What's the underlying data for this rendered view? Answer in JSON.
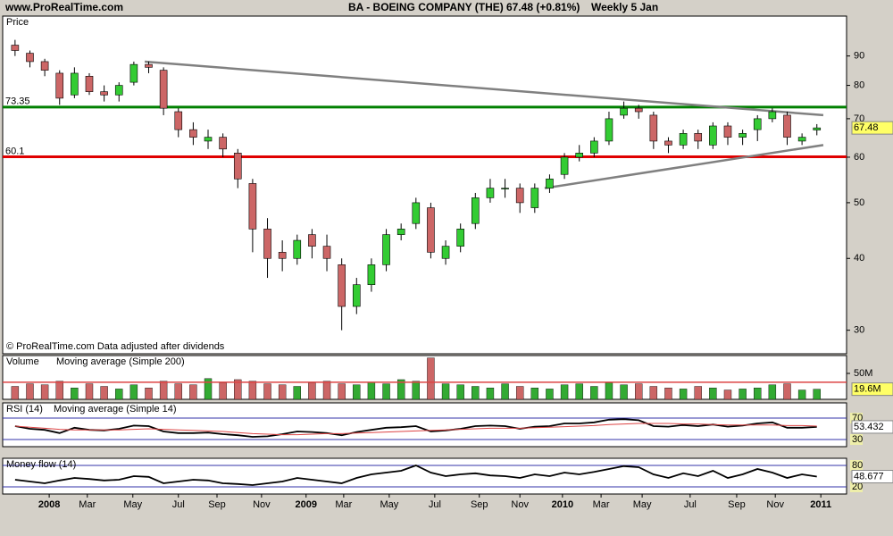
{
  "header": {
    "site": "www.ProRealTime.com"
  },
  "chart_data": [
    {
      "type": "candlestick",
      "title": "BA - BOEING COMPANY (THE)",
      "last_label": "67.48 (+0.81%)",
      "period": "Weekly  5 Jan",
      "ylabel": "Price",
      "note": "© ProRealTime.com  Data adjusted after dividends",
      "x": [
        2,
        5,
        8,
        11,
        14,
        17,
        20,
        23,
        26,
        29,
        32,
        35,
        38,
        41,
        44,
        47,
        50,
        53,
        56,
        59,
        62,
        65,
        68,
        71,
        74,
        77,
        80,
        83,
        86,
        89,
        92,
        95,
        98,
        101,
        104,
        107,
        110,
        113,
        116,
        119,
        122,
        125,
        128,
        131,
        134,
        137,
        140,
        143,
        146,
        149,
        152,
        155,
        158,
        161,
        164
      ],
      "open": [
        94,
        91,
        88,
        84,
        77,
        83,
        78,
        77,
        81,
        87,
        85,
        72,
        67,
        64,
        65,
        61,
        54,
        45,
        41,
        40,
        44,
        42,
        39,
        33,
        36,
        39,
        44,
        46,
        49,
        40,
        42,
        46,
        51,
        53,
        53,
        49,
        53,
        56,
        60,
        61,
        64,
        71,
        73,
        71,
        64,
        63,
        66,
        63,
        68,
        65,
        67,
        70,
        71,
        64,
        66.9
      ],
      "high": [
        96,
        92,
        89,
        85,
        86,
        84,
        80,
        81,
        88,
        88,
        86,
        73,
        69,
        67,
        66,
        62,
        55,
        47,
        43,
        44,
        45,
        44,
        40,
        37,
        40,
        45,
        46,
        51,
        50,
        43,
        46,
        52,
        55,
        55,
        54,
        54,
        56,
        61,
        63,
        65,
        72,
        75,
        74,
        72,
        65,
        67,
        67,
        69,
        69,
        67,
        71,
        73,
        72,
        66,
        68.5
      ],
      "low": [
        90,
        86,
        83,
        74,
        76,
        77,
        75,
        75,
        80,
        84,
        71,
        65,
        63,
        62,
        60,
        53,
        41,
        37,
        38,
        39,
        40,
        38,
        30,
        32,
        35,
        38,
        43,
        45,
        40,
        39,
        41,
        45,
        50,
        51,
        48,
        48,
        52,
        55,
        59,
        60,
        63,
        70,
        70,
        62,
        61,
        62,
        62,
        62,
        63,
        63,
        64,
        69,
        63,
        63,
        65.5
      ],
      "close": [
        92,
        88,
        85,
        76,
        84,
        78,
        77,
        80,
        87,
        86,
        73,
        67,
        65,
        65,
        62,
        55,
        45,
        40,
        40,
        43,
        42,
        40,
        33,
        36,
        39,
        44,
        45,
        50,
        41,
        42,
        45,
        51,
        53,
        53,
        50,
        53,
        55,
        60,
        61,
        64,
        70,
        73,
        72,
        64,
        63,
        66,
        64,
        68,
        65,
        66,
        70,
        72,
        65,
        65,
        67.48
      ],
      "up_color": "#33cc33",
      "down_color": "#cc6666",
      "last_price": 67.48,
      "xlim": [
        -0.5,
        170
      ],
      "ylim": [
        27.3,
        105.6
      ],
      "log": true,
      "yticks": [
        30,
        40,
        50,
        60,
        70,
        80,
        90
      ],
      "xticks": [
        {
          "value": 8.9,
          "label": "2008"
        },
        {
          "value": 16.6,
          "label": "Mar"
        },
        {
          "value": 25.8,
          "label": "May"
        },
        {
          "value": 35.0,
          "label": "Jul"
        },
        {
          "value": 42.8,
          "label": "Sep"
        },
        {
          "value": 51.8,
          "label": "Nov"
        },
        {
          "value": 60.8,
          "label": "2009"
        },
        {
          "value": 68.4,
          "label": "Mar"
        },
        {
          "value": 77.6,
          "label": "May"
        },
        {
          "value": 86.8,
          "label": "Jul"
        },
        {
          "value": 95.8,
          "label": "Sep"
        },
        {
          "value": 104.0,
          "label": "Nov"
        },
        {
          "value": 112.6,
          "label": "2010"
        },
        {
          "value": 120.4,
          "label": "Mar"
        },
        {
          "value": 128.7,
          "label": "May"
        },
        {
          "value": 138.4,
          "label": "Jul"
        },
        {
          "value": 147.8,
          "label": "Sep"
        },
        {
          "value": 155.6,
          "label": "Nov"
        },
        {
          "value": 164.8,
          "label": "2011"
        }
      ],
      "hlines": [
        {
          "value": 73.35,
          "label": "73.35",
          "color": "#008000"
        },
        {
          "value": 60.1,
          "label": "60.1",
          "color": "#e00000"
        }
      ],
      "trendlines": [
        {
          "x": [
            28.2,
            165.3
          ],
          "y": [
            88,
            71
          ],
          "color": "#808080"
        },
        {
          "x": [
            109.0,
            165.3
          ],
          "y": [
            53,
            63
          ],
          "color": "#808080"
        }
      ]
    },
    {
      "type": "bar",
      "series": [
        {
          "name": "Volume",
          "color": "#33aa33",
          "values": [
            25,
            30,
            28,
            35,
            22,
            30,
            25,
            20,
            28,
            22,
            35,
            30,
            28,
            40,
            32,
            38,
            35,
            30,
            28,
            25,
            32,
            35,
            30,
            28,
            33,
            30,
            38,
            35,
            80,
            30,
            28,
            25,
            22,
            30,
            25,
            22,
            20,
            28,
            30,
            25,
            32,
            28,
            30,
            25,
            22,
            20,
            25,
            22,
            18,
            20,
            22,
            28,
            30,
            18,
            19.6
          ]
        }
      ],
      "ma_name": "Moving average (Simple 200)",
      "ma": 33,
      "ma_color": "#dd4444",
      "ylim": [
        0,
        84.5
      ],
      "yticks": [
        {
          "value": 50,
          "label": "50M"
        }
      ],
      "last": {
        "value": 19.6,
        "label": "19.6M"
      }
    },
    {
      "type": "line",
      "series": [
        {
          "name": "RSI (14)",
          "color": "#000000",
          "values": [
            55,
            50,
            48,
            42,
            52,
            48,
            47,
            50,
            56,
            55,
            45,
            42,
            42,
            43,
            40,
            38,
            35,
            36,
            40,
            45,
            44,
            42,
            38,
            44,
            48,
            52,
            53,
            55,
            45,
            47,
            50,
            55,
            56,
            55,
            50,
            54,
            55,
            60,
            60,
            62,
            67,
            68,
            66,
            55,
            54,
            57,
            55,
            58,
            54,
            56,
            60,
            62,
            52,
            52,
            53.432
          ]
        },
        {
          "name": "Moving average (Simple 14)",
          "color": "#dd4444",
          "values": [
            55,
            53,
            51,
            49,
            48,
            48,
            48,
            48,
            49,
            50,
            49,
            48,
            47,
            46,
            45,
            43,
            41,
            40,
            39,
            39,
            40,
            41,
            41,
            42,
            43,
            44,
            45,
            46,
            47,
            48,
            49,
            50,
            51,
            51,
            51,
            52,
            53,
            54,
            55,
            56,
            58,
            59,
            60,
            60,
            60,
            59,
            59,
            58,
            57,
            57,
            57,
            57,
            56,
            56,
            55
          ]
        }
      ],
      "ylim": [
        16.7,
        98.3
      ],
      "yticks": [
        30,
        70
      ],
      "last": 53.432
    },
    {
      "type": "line",
      "series": [
        {
          "name": "Money flow (14)",
          "color": "#000000",
          "values": [
            40,
            35,
            30,
            38,
            45,
            42,
            38,
            40,
            50,
            48,
            30,
            35,
            40,
            38,
            30,
            28,
            25,
            30,
            35,
            45,
            40,
            35,
            30,
            45,
            55,
            60,
            65,
            80,
            60,
            50,
            55,
            58,
            52,
            50,
            45,
            55,
            50,
            60,
            55,
            62,
            70,
            78,
            75,
            55,
            45,
            58,
            50,
            65,
            45,
            55,
            70,
            60,
            45,
            55,
            48.677
          ]
        }
      ],
      "ylim": [
        0,
        100
      ],
      "yticks": [
        20,
        80
      ],
      "last": 48.677
    }
  ]
}
